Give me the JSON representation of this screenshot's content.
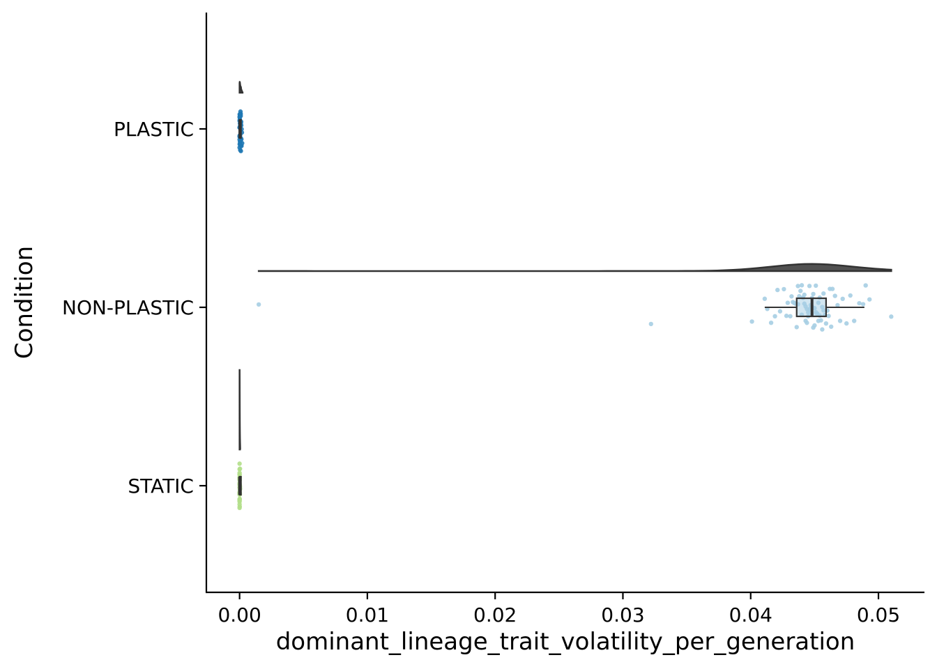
{
  "chart_data": {
    "type": "raincloud",
    "orientation": "horizontal",
    "xlabel": "dominant_lineage_trait_volatility_per_generation",
    "ylabel": "Condition",
    "xlim": [
      -0.0026,
      0.0536
    ],
    "x_ticks": [
      0.0,
      0.01,
      0.02,
      0.03,
      0.04,
      0.05
    ],
    "x_tick_labels": [
      "0.00",
      "0.01",
      "0.02",
      "0.03",
      "0.04",
      "0.05"
    ],
    "categories": [
      "PLASTIC",
      "NON-PLASTIC",
      "STATIC"
    ],
    "grid": false,
    "legend": "none",
    "series": [
      {
        "category": "PLASTIC",
        "color": "#1f78b4",
        "violin": {
          "min": 0.0,
          "max": 0.0003,
          "max_density_width_fraction": 0.06
        },
        "box": {
          "q1": 0.0,
          "median": 2e-05,
          "q3": 5e-05,
          "whisker_low": 0.0,
          "whisker_high": 0.00012
        },
        "points": [
          0.0,
          2e-05,
          5e-05,
          0.0001,
          3e-05,
          0.0,
          8e-05,
          0.00015,
          0.0001,
          4e-05,
          0.0,
          0.00012,
          6e-05,
          2e-05,
          0.00018,
          0.0,
          9e-05,
          3e-05,
          0.00011,
          1e-05,
          7e-05,
          0.0,
          0.00014,
          5e-05,
          2e-05,
          0.0001,
          0.0,
          6e-05,
          0.00013,
          4e-05,
          0.0002,
          1e-05,
          8e-05,
          0.0,
          3e-05,
          0.00016,
          5e-05,
          0.0,
          9e-05,
          2e-05
        ]
      },
      {
        "category": "NON-PLASTIC",
        "color": "#a6cee3",
        "violin": {
          "min": 0.0015,
          "max": 0.051,
          "peak": 0.045,
          "max_density_width_fraction": 0.04
        },
        "box": {
          "q1": 0.0436,
          "median": 0.0448,
          "q3": 0.0459,
          "whisker_low": 0.0411,
          "whisker_high": 0.0489
        },
        "points": [
          0.0015,
          0.0322,
          0.0401,
          0.0411,
          0.0413,
          0.0416,
          0.0419,
          0.0421,
          0.0423,
          0.0426,
          0.0428,
          0.0429,
          0.0431,
          0.0432,
          0.0433,
          0.0434,
          0.0435,
          0.0436,
          0.0437,
          0.0437,
          0.0438,
          0.0439,
          0.044,
          0.044,
          0.0441,
          0.0441,
          0.0442,
          0.0442,
          0.0443,
          0.0443,
          0.0444,
          0.0444,
          0.0445,
          0.0445,
          0.0446,
          0.0446,
          0.0447,
          0.0447,
          0.0448,
          0.0448,
          0.0448,
          0.0449,
          0.0449,
          0.045,
          0.045,
          0.0451,
          0.0451,
          0.0452,
          0.0452,
          0.0453,
          0.0453,
          0.0454,
          0.0454,
          0.0455,
          0.0456,
          0.0456,
          0.0457,
          0.0457,
          0.0458,
          0.0459,
          0.046,
          0.0461,
          0.0462,
          0.0463,
          0.0464,
          0.0466,
          0.0468,
          0.047,
          0.0472,
          0.0475,
          0.0478,
          0.0481,
          0.0485,
          0.0488,
          0.049,
          0.0493,
          0.051
        ]
      },
      {
        "category": "STATIC",
        "color": "#b2df8a",
        "violin": {
          "min": 0.0,
          "max": 0.0001,
          "max_density_width_fraction": 0.45
        },
        "box": {
          "q1": 0.0,
          "median": 0.0,
          "q3": 1e-05,
          "whisker_low": 0.0,
          "whisker_high": 2e-05
        },
        "points": [
          0.0,
          1e-05,
          0.0,
          2e-05,
          0.0,
          1e-05,
          0.0,
          0.0,
          3e-05,
          0.0,
          1e-05,
          0.0,
          2e-05,
          0.0,
          0.0,
          1e-05,
          0.0,
          4e-05,
          0.0,
          1e-05,
          0.0,
          0.0,
          2e-05,
          0.0,
          1e-05,
          0.0,
          0.0,
          3e-05,
          0.0,
          1e-05,
          0.0,
          2e-05,
          0.0,
          0.0,
          1e-05,
          0.0
        ]
      }
    ]
  }
}
